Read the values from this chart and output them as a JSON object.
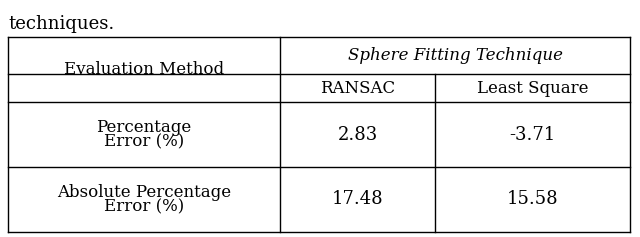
{
  "caption_text": "techniques.",
  "header_col0": "Evaluation Method",
  "header_spanning": "Sphere Fitting Technique",
  "subheader_col1": "RANSAC",
  "subheader_col2": "Least Square",
  "row1_col0_line1": "Percentage",
  "row1_col0_line2": "Error (%)",
  "row1_col1": "2.83",
  "row1_col2": "-3.71",
  "row2_col0_line1": "Absolute Percentage",
  "row2_col0_line2": "Error (%)",
  "row2_col1": "17.48",
  "row2_col2": "15.58",
  "bg_color": "#ffffff",
  "text_color": "#000000",
  "line_color": "#000000",
  "caption_fontsize": 13,
  "font_size": 12,
  "data_font_size": 13
}
